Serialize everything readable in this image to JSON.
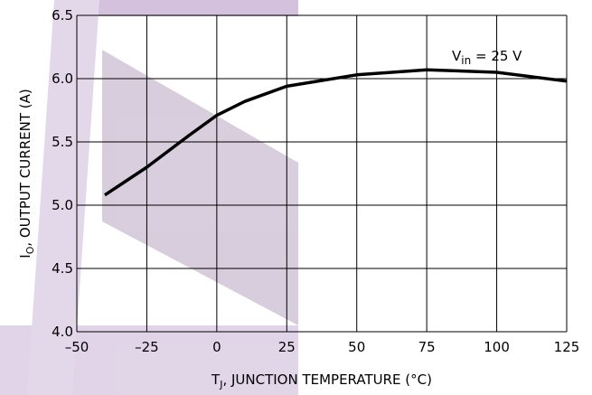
{
  "chart_data": {
    "type": "line",
    "x_label": {
      "main": "T",
      "sub": "J",
      "rest": ", JUNCTION TEMPERATURE (°C)"
    },
    "y_label": {
      "main": "I",
      "sub": "O",
      "rest": ", OUTPUT CURRENT (A)"
    },
    "annotation": {
      "main": "V",
      "sub": "in",
      "rest": " = 25 V"
    },
    "x": [
      -40,
      -25,
      -10,
      0,
      10,
      25,
      50,
      75,
      100,
      125
    ],
    "series": [
      {
        "color": "#000000",
        "values": [
          5.08,
          5.3,
          5.55,
          5.71,
          5.82,
          5.94,
          6.03,
          6.07,
          6.05,
          5.98
        ]
      }
    ],
    "xlim": [
      -50,
      125
    ],
    "xticks": [
      {
        "value": -50,
        "label": "–50"
      },
      {
        "value": -25,
        "label": "–25"
      },
      0,
      25,
      50,
      75,
      100,
      125
    ],
    "ylim": [
      4,
      6.5
    ],
    "yticks": [
      {
        "value": 4,
        "label": "4.0"
      },
      {
        "value": 4.5,
        "label": "4.5"
      },
      {
        "value": 5,
        "label": "5.0"
      },
      {
        "value": 5.5,
        "label": "5.5"
      },
      {
        "value": 6,
        "label": "6.0"
      },
      {
        "value": 6.5,
        "label": "6.5"
      }
    ],
    "grid": true
  }
}
